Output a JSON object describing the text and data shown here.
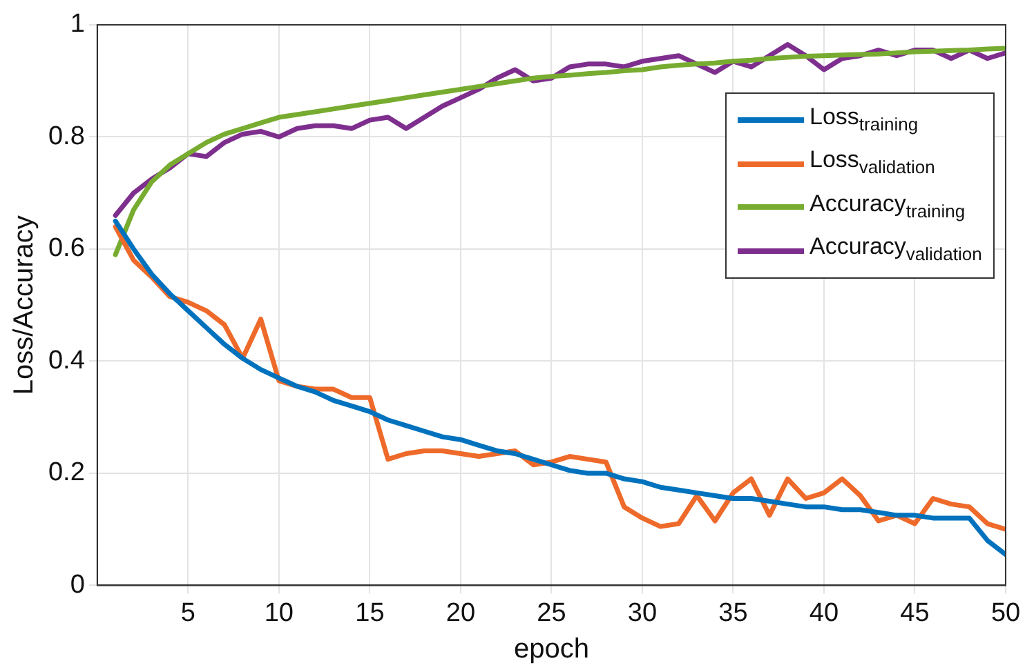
{
  "chart_data": {
    "type": "line",
    "xlabel": "epoch",
    "ylabel": "Loss/Accuracy",
    "x": [
      1,
      2,
      3,
      4,
      5,
      6,
      7,
      8,
      9,
      10,
      11,
      12,
      13,
      14,
      15,
      16,
      17,
      18,
      19,
      20,
      21,
      22,
      23,
      24,
      25,
      26,
      27,
      28,
      29,
      30,
      31,
      32,
      33,
      34,
      35,
      36,
      37,
      38,
      39,
      40,
      41,
      42,
      43,
      44,
      45,
      46,
      47,
      48,
      49,
      50
    ],
    "series": [
      {
        "name": "Loss$_{training}$",
        "color": "#0072bd",
        "values": [
          0.65,
          0.6,
          0.555,
          0.52,
          0.49,
          0.46,
          0.43,
          0.405,
          0.385,
          0.37,
          0.355,
          0.345,
          0.33,
          0.32,
          0.31,
          0.295,
          0.285,
          0.275,
          0.265,
          0.26,
          0.25,
          0.24,
          0.235,
          0.225,
          0.215,
          0.205,
          0.2,
          0.2,
          0.19,
          0.185,
          0.175,
          0.17,
          0.165,
          0.16,
          0.155,
          0.155,
          0.15,
          0.145,
          0.14,
          0.14,
          0.135,
          0.135,
          0.13,
          0.125,
          0.125,
          0.12,
          0.12,
          0.12,
          0.08,
          0.055
        ]
      },
      {
        "name": "Loss$_{validation}$",
        "color": "#ee6a2a",
        "values": [
          0.64,
          0.58,
          0.55,
          0.515,
          0.505,
          0.49,
          0.465,
          0.405,
          0.475,
          0.365,
          0.355,
          0.35,
          0.35,
          0.335,
          0.335,
          0.225,
          0.235,
          0.24,
          0.24,
          0.235,
          0.23,
          0.235,
          0.24,
          0.215,
          0.22,
          0.23,
          0.225,
          0.22,
          0.14,
          0.12,
          0.105,
          0.11,
          0.16,
          0.115,
          0.165,
          0.19,
          0.125,
          0.19,
          0.155,
          0.165,
          0.19,
          0.16,
          0.115,
          0.125,
          0.11,
          0.155,
          0.145,
          0.14,
          0.11,
          0.1
        ]
      },
      {
        "name": "Accuracy$_{training}$",
        "color": "#77ac30",
        "values": [
          0.59,
          0.67,
          0.72,
          0.75,
          0.77,
          0.79,
          0.805,
          0.815,
          0.825,
          0.835,
          0.84,
          0.845,
          0.85,
          0.855,
          0.86,
          0.865,
          0.87,
          0.875,
          0.88,
          0.885,
          0.89,
          0.895,
          0.9,
          0.905,
          0.908,
          0.91,
          0.913,
          0.915,
          0.918,
          0.92,
          0.925,
          0.928,
          0.93,
          0.932,
          0.935,
          0.937,
          0.94,
          0.942,
          0.944,
          0.945,
          0.946,
          0.947,
          0.948,
          0.95,
          0.952,
          0.953,
          0.954,
          0.955,
          0.957,
          0.958
        ]
      },
      {
        "name": "Accuracy$_{validation}$",
        "color": "#7e2f8e",
        "values": [
          0.66,
          0.7,
          0.725,
          0.745,
          0.77,
          0.765,
          0.79,
          0.805,
          0.81,
          0.8,
          0.815,
          0.82,
          0.82,
          0.815,
          0.83,
          0.835,
          0.815,
          0.835,
          0.855,
          0.87,
          0.885,
          0.905,
          0.92,
          0.9,
          0.905,
          0.925,
          0.93,
          0.93,
          0.925,
          0.935,
          0.94,
          0.945,
          0.93,
          0.915,
          0.935,
          0.925,
          0.945,
          0.965,
          0.945,
          0.92,
          0.94,
          0.945,
          0.955,
          0.945,
          0.955,
          0.955,
          0.94,
          0.955,
          0.94,
          0.95
        ]
      }
    ],
    "xlim": [
      0,
      50
    ],
    "xticks": [
      5,
      10,
      15,
      20,
      25,
      30,
      35,
      40,
      45,
      50
    ],
    "ylim": [
      0,
      1
    ],
    "yticks": [
      0,
      0.2,
      0.4,
      0.6,
      0.8,
      1
    ],
    "grid": true,
    "legend": "right",
    "marker": "none",
    "line_style": "solid"
  }
}
